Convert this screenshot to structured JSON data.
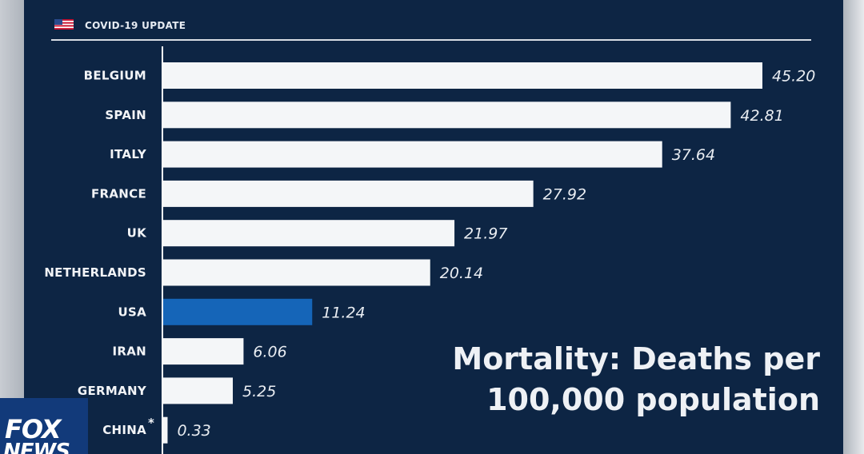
{
  "header": {
    "title": "COVID-19 UPDATE",
    "flag_icon": "us-flag-icon"
  },
  "headline": {
    "line1": "Mortality: Deaths per",
    "line2": "100,000 population"
  },
  "logo": {
    "line1": "FOX",
    "line2": "NEWS"
  },
  "colors": {
    "background": "#0d2544",
    "bar": "#f4f6f8",
    "highlight": "#1565b8",
    "text": "#eef1f5"
  },
  "chart_data": {
    "type": "bar",
    "orientation": "horizontal",
    "title": "Mortality: Deaths per 100,000 population",
    "categories": [
      "BELGIUM",
      "SPAIN",
      "ITALY",
      "FRANCE",
      "UK",
      "NETHERLANDS",
      "USA",
      "IRAN",
      "GERMANY",
      "CHINA"
    ],
    "values": [
      45.2,
      42.81,
      37.64,
      27.92,
      21.97,
      20.14,
      11.24,
      6.06,
      5.25,
      0.33
    ],
    "value_labels": [
      "45.20",
      "42.81",
      "37.64",
      "27.92",
      "21.97",
      "20.14",
      "11.24",
      "6.06",
      "5.25",
      "0.33"
    ],
    "highlight": "USA",
    "footnote_marks": {
      "CHINA": "*"
    },
    "xlim": [
      0,
      45.2
    ],
    "grid": false,
    "legend": "none"
  }
}
